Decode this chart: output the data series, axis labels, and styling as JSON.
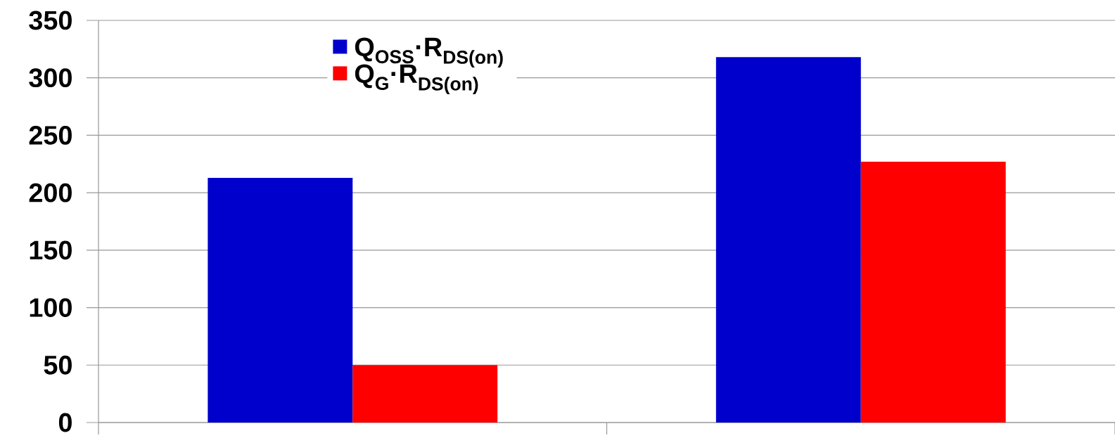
{
  "chart_data": {
    "type": "bar",
    "categories": [
      null,
      null
    ],
    "series": [
      {
        "name": "Q$_{OSS}$·R$_{DS(on)}$",
        "color": "#0000cc",
        "values": [
          213,
          318
        ]
      },
      {
        "name": "Q$_{G}$·R$_{DS(on)}$",
        "color": "#ff0000",
        "values": [
          50,
          227
        ]
      }
    ],
    "ylim": [
      0,
      350
    ],
    "yticks": [
      0,
      50,
      100,
      150,
      200,
      250,
      300,
      350
    ],
    "grid": "y",
    "legend": "top left"
  }
}
